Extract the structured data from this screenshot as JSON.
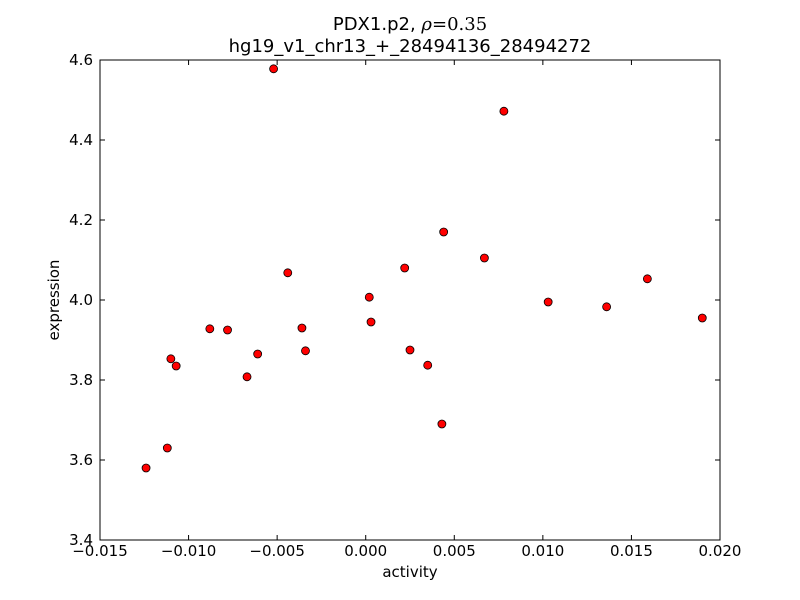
{
  "chart_data": {
    "type": "scatter",
    "title_prefix": "PDX1.p2, ",
    "title_rho_symbol": "ρ",
    "title_rho_value": "=0.35",
    "subtitle": "hg19_v1_chr13_+_28494136_28494272",
    "xlabel": "activity",
    "ylabel": "expression",
    "xlim": [
      -0.015,
      0.02
    ],
    "ylim": [
      3.4,
      4.6
    ],
    "xticks": [
      -0.015,
      -0.01,
      -0.005,
      0.0,
      0.005,
      0.01,
      0.015,
      0.02
    ],
    "xtick_labels": [
      "−0.015",
      "−0.010",
      "−0.005",
      "0.000",
      "0.005",
      "0.010",
      "0.015",
      "0.020"
    ],
    "yticks": [
      3.4,
      3.6,
      3.8,
      4.0,
      4.2,
      4.4,
      4.6
    ],
    "ytick_labels": [
      "3.4",
      "3.6",
      "3.8",
      "4.0",
      "4.2",
      "4.4",
      "4.6"
    ],
    "grid": false,
    "marker_color": "#ff0000",
    "marker_edge_color": "#000000",
    "points": [
      {
        "x": -0.0124,
        "y": 3.58
      },
      {
        "x": -0.0112,
        "y": 3.63
      },
      {
        "x": -0.011,
        "y": 3.853
      },
      {
        "x": -0.0107,
        "y": 3.835
      },
      {
        "x": -0.0088,
        "y": 3.928
      },
      {
        "x": -0.0078,
        "y": 3.925
      },
      {
        "x": -0.0067,
        "y": 3.808
      },
      {
        "x": -0.0061,
        "y": 3.865
      },
      {
        "x": -0.0052,
        "y": 4.578
      },
      {
        "x": -0.0044,
        "y": 4.068
      },
      {
        "x": -0.0036,
        "y": 3.93
      },
      {
        "x": -0.0034,
        "y": 3.873
      },
      {
        "x": 0.0002,
        "y": 4.007
      },
      {
        "x": 0.0003,
        "y": 3.945
      },
      {
        "x": 0.0022,
        "y": 4.08
      },
      {
        "x": 0.0025,
        "y": 3.875
      },
      {
        "x": 0.0035,
        "y": 3.837
      },
      {
        "x": 0.0043,
        "y": 3.69
      },
      {
        "x": 0.0044,
        "y": 4.17
      },
      {
        "x": 0.0067,
        "y": 4.105
      },
      {
        "x": 0.0078,
        "y": 4.472
      },
      {
        "x": 0.0103,
        "y": 3.995
      },
      {
        "x": 0.0136,
        "y": 3.983
      },
      {
        "x": 0.0159,
        "y": 4.053
      },
      {
        "x": 0.019,
        "y": 3.955
      }
    ]
  }
}
